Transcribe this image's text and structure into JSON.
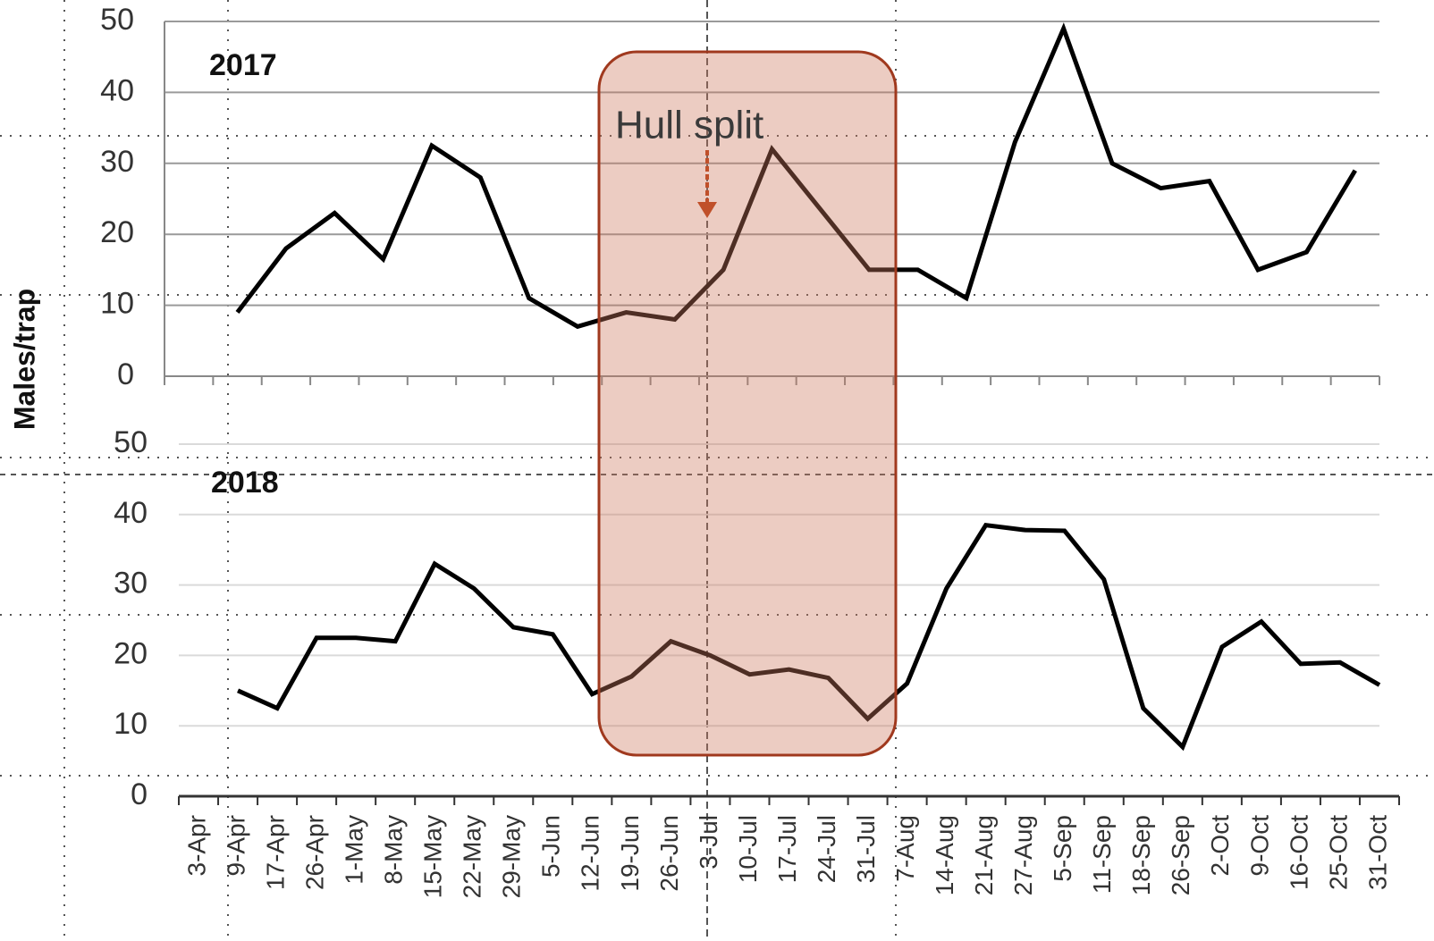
{
  "chart_data": [
    {
      "type": "line",
      "title": "2017",
      "ylabel": "Males/trap",
      "annotation": "Hull split",
      "categories": [
        null,
        null,
        null,
        null,
        null,
        null,
        null,
        null,
        null,
        null,
        null,
        null,
        null,
        null,
        null,
        null,
        null,
        null,
        null,
        null,
        null,
        null,
        null,
        null,
        null
      ],
      "values": [
        null,
        9,
        18,
        23,
        16.5,
        32.5,
        28,
        11,
        7,
        9,
        8,
        15,
        32,
        23.5,
        15,
        15,
        11,
        33,
        49,
        30,
        26.5,
        27.5,
        15,
        17.5,
        29
      ],
      "color": "#000000",
      "ylim": [
        0,
        50
      ],
      "yticks": [
        0,
        10,
        20,
        30,
        40,
        50
      ],
      "grid": true
    },
    {
      "type": "line",
      "title": "2018",
      "categories": [
        "3-Apr",
        "9-Apr",
        "17-Apr",
        "26-Apr",
        "1-May",
        "8-May",
        "15-May",
        "22-May",
        "29-May",
        "5-Jun",
        "12-Jun",
        "19-Jun",
        "26-Jun",
        "3-Jul",
        "10-Jul",
        "17-Jul",
        "24-Jul",
        "31-Jul",
        "7-Aug",
        "14-Aug",
        "21-Aug",
        "27-Aug",
        "5-Sep",
        "11-Sep",
        "18-Sep",
        "26-Sep",
        "2-Oct",
        "9-Oct",
        "16-Oct",
        "25-Oct",
        "31-Oct"
      ],
      "values": [
        null,
        15,
        12.5,
        22.5,
        22.5,
        22,
        33,
        29.5,
        24,
        23,
        14.5,
        17,
        22,
        20,
        17.3,
        18,
        16.8,
        11,
        16,
        29.5,
        38.5,
        37.8,
        37.7,
        30.8,
        12.5,
        7,
        21.2,
        24.8,
        18.8,
        19,
        15.8
      ],
      "color": "#000000",
      "ylim": [
        0,
        50
      ],
      "yticks": [
        0,
        10,
        20,
        30,
        40,
        50
      ],
      "grid": true
    }
  ]
}
